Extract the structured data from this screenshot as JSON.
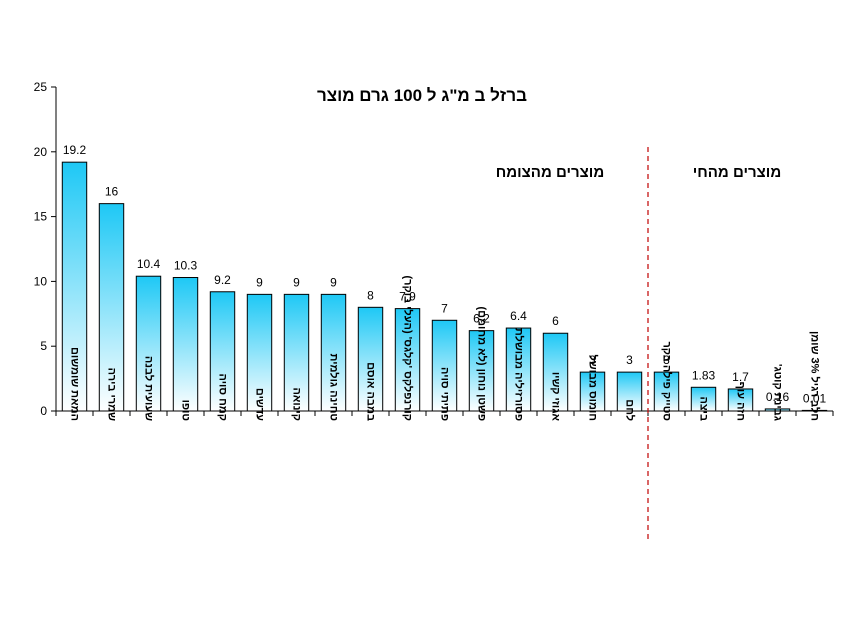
{
  "chart_data": {
    "type": "bar",
    "title": "ברזל ב מ\"ג ל 100 גרם מוצר",
    "xlabel": "",
    "ylabel": "",
    "ylim": [
      0,
      25
    ],
    "yticks": [
      0,
      5,
      10,
      15,
      20,
      25
    ],
    "grid": false,
    "categories": [
      "המאת שומשום",
      "שמרי בירה",
      "שעועית לבנה",
      "טופו",
      "קמח סויה",
      "עדשים",
      "קינואה",
      "טחינה גולמית",
      "במבה אוסם",
      "קורנפלקס 'קלגס' (העלי בוקר)",
      "פתיתי סויה",
      "פשטן נוחון (לא מחומם)",
      "פסורזיליה מבושלת",
      "אגוזי קשיו",
      "חומוס מבושל",
      "לחם",
      "סטייק פילה בקר",
      "ביצה",
      "חזה עוף",
      "גבינת קוטג'",
      "חלב רגיל 3% שומן"
    ],
    "values": [
      19.2,
      16,
      10.4,
      10.3,
      9.2,
      9,
      9,
      9,
      8,
      7.9,
      7,
      6.2,
      6.4,
      6,
      3,
      3,
      3,
      1.83,
      1.7,
      0.16,
      0.01
    ],
    "value_labels": [
      "19.2",
      "16",
      "10.4",
      "10.3",
      "9.2",
      "9",
      "9",
      "9",
      "8",
      "7.9",
      "7",
      "6.2",
      "6.4",
      "6",
      "3",
      "3",
      "3",
      "1.83",
      "1.7",
      "0.16",
      "0.01"
    ],
    "groups": [
      {
        "label": "מוצרים מהצומח"
      },
      {
        "label": "מוצרים מהחי"
      }
    ],
    "colors": {
      "bar_top": "#1ec8f5",
      "bar_bottom": "#ffffff",
      "bar_stroke": "#000000",
      "divider": "#c00000"
    }
  }
}
